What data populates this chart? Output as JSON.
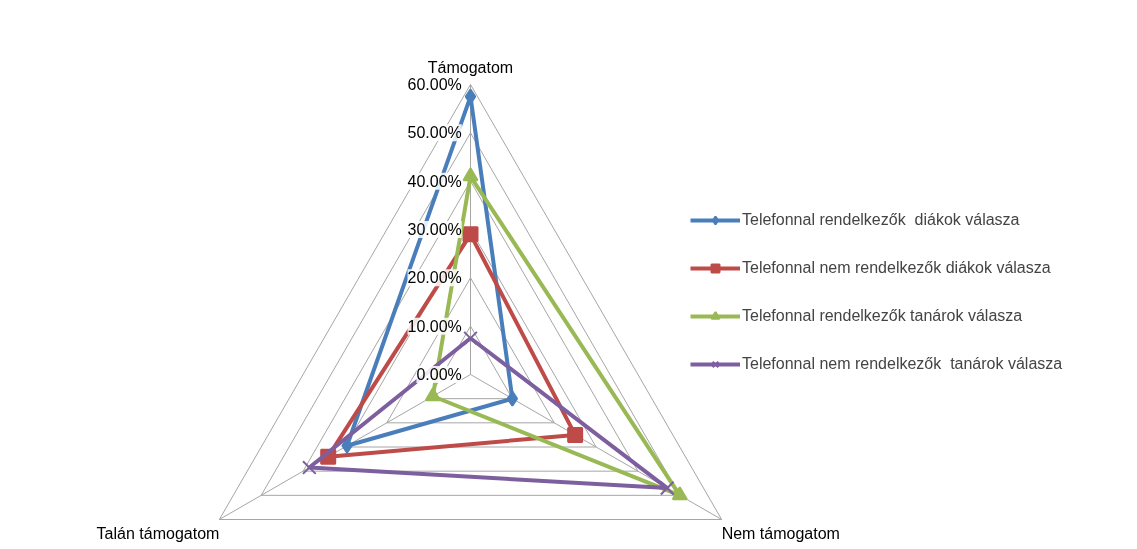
{
  "chart_data": {
    "type": "radar",
    "categories": [
      "Támogatom",
      "Nem támogatom",
      "Talán támogatom"
    ],
    "ylim": [
      0,
      60
    ],
    "yticks": [
      {
        "value": 0,
        "label": "0.00%"
      },
      {
        "value": 10,
        "label": "10.00%"
      },
      {
        "value": 20,
        "label": "20.00%"
      },
      {
        "value": 30,
        "label": "30.00%"
      },
      {
        "value": 40,
        "label": "40.00%"
      },
      {
        "value": 50,
        "label": "50.00%"
      },
      {
        "value": 60,
        "label": "60.00%"
      }
    ],
    "grid": true,
    "legend": "right",
    "line_style": "solid",
    "series": [
      {
        "name": "Telefonnal rendelkezők  diákok válasza",
        "color": "#4a7ebb",
        "marker": "diamond",
        "values": [
          57.5,
          10,
          29.5
        ]
      },
      {
        "name": "Telefonnal nem rendelkezők diákok válasza",
        "color": "#be4b48",
        "marker": "square",
        "values": [
          29,
          25,
          34
        ]
      },
      {
        "name": "Telefonnal rendelkezők tanárok válasza",
        "color": "#98b954",
        "marker": "triangle",
        "values": [
          41,
          50,
          9
        ]
      },
      {
        "name": "Telefonnal nem rendelkezők  tanárok válasza",
        "color": "#7d5fa0",
        "marker": "cross",
        "values": [
          7.5,
          47,
          38.5
        ]
      }
    ]
  }
}
